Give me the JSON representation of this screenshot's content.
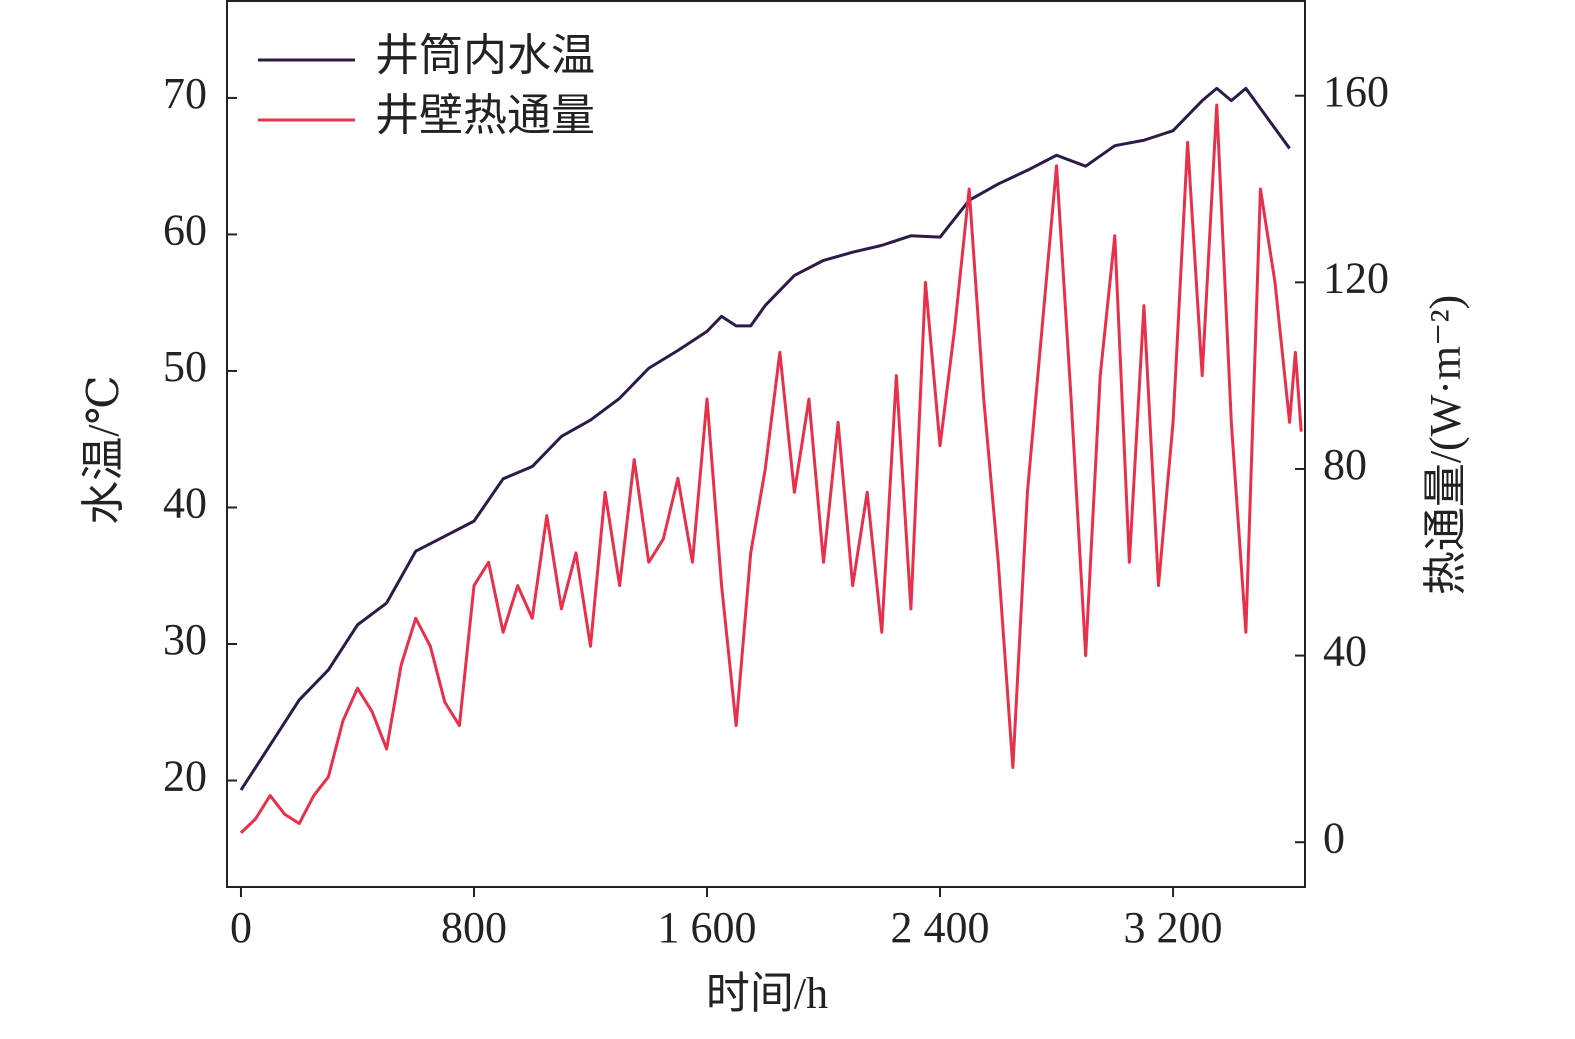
{
  "chart_data": {
    "type": "line",
    "xlabel": "时间/h",
    "ylabel": "水温/℃",
    "y2label": "热通量/(W·m⁻²)",
    "xlim": [
      -48,
      3653
    ],
    "ylim": [
      12.2,
      77.1
    ],
    "y2lim": [
      -9.6,
      180.3
    ],
    "xticks": [
      0,
      800,
      {
        "value": 1600,
        "label": "1 600"
      },
      {
        "value": 2400,
        "label": "2 400"
      },
      {
        "value": 3200,
        "label": "3 200"
      }
    ],
    "yticks": [
      20,
      30,
      40,
      50,
      60,
      70
    ],
    "y2ticks": [
      0,
      40,
      80,
      120,
      160
    ],
    "legend": "upper left",
    "series": [
      {
        "name": "井筒内水温",
        "color": "#2e1a47",
        "axis": "y",
        "x": [
          0,
          100,
          200,
          300,
          400,
          500,
          600,
          700,
          800,
          900,
          1000,
          1100,
          1200,
          1300,
          1400,
          1500,
          1600,
          1650,
          1700,
          1750,
          1800,
          1900,
          2000,
          2100,
          2200,
          2300,
          2400,
          2500,
          2600,
          2700,
          2800,
          2900,
          3000,
          3100,
          3200,
          3300,
          3350,
          3400,
          3450,
          3600
        ],
        "values": [
          19.3,
          22.6,
          25.9,
          28.1,
          31.4,
          33.0,
          36.8,
          37.9,
          39.0,
          42.1,
          43.0,
          45.2,
          46.4,
          48.0,
          50.2,
          51.5,
          52.9,
          54.0,
          53.3,
          53.3,
          54.8,
          57.0,
          58.1,
          58.7,
          59.2,
          59.9,
          59.8,
          62.5,
          63.7,
          64.7,
          65.8,
          65.0,
          66.5,
          66.9,
          67.6,
          69.8,
          70.7,
          69.8,
          70.7,
          66.3
        ]
      },
      {
        "name": "井壁热通量",
        "color": "#e8304a",
        "axis": "y2",
        "x": [
          0,
          50,
          100,
          150,
          200,
          250,
          300,
          350,
          400,
          450,
          500,
          550,
          600,
          650,
          700,
          750,
          800,
          850,
          900,
          950,
          1000,
          1050,
          1100,
          1150,
          1200,
          1250,
          1300,
          1350,
          1400,
          1450,
          1500,
          1550,
          1600,
          1650,
          1700,
          1750,
          1800,
          1850,
          1900,
          1950,
          2000,
          2050,
          2100,
          2150,
          2200,
          2250,
          2300,
          2350,
          2400,
          2450,
          2500,
          2550,
          2600,
          2650,
          2700,
          2750,
          2800,
          2850,
          2900,
          2950,
          3000,
          3050,
          3100,
          3150,
          3200,
          3250,
          3300,
          3350,
          3400,
          3450,
          3500,
          3550,
          3600,
          3620,
          3640
        ],
        "values": [
          2,
          5,
          10,
          6,
          4,
          10,
          14,
          26,
          33,
          28,
          20,
          38,
          48,
          42,
          30,
          25,
          55,
          60,
          45,
          55,
          48,
          70,
          50,
          62,
          42,
          75,
          55,
          82,
          60,
          65,
          78,
          60,
          95,
          55,
          25,
          62,
          80,
          105,
          75,
          95,
          60,
          90,
          55,
          75,
          45,
          100,
          50,
          120,
          85,
          110,
          140,
          95,
          60,
          16,
          75,
          110,
          145,
          95,
          40,
          100,
          130,
          60,
          115,
          55,
          90,
          150,
          100,
          158,
          90,
          45,
          140,
          120,
          90,
          105,
          88
        ]
      }
    ]
  }
}
